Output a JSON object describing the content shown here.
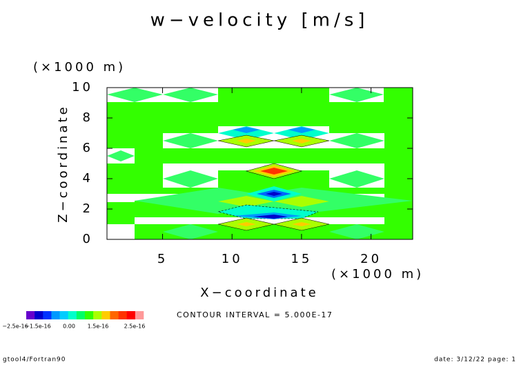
{
  "chart_data": {
    "type": "contour",
    "title": "w−velocity [m/s]",
    "x_label": "X−coordinate",
    "y_label": "Z−coordinate",
    "x_unit": "(×1000 m)",
    "y_unit": "(×1000 m)",
    "xlim": [
      1,
      23
    ],
    "xticks": [
      5,
      10,
      15,
      20
    ],
    "ylim": [
      0,
      10
    ],
    "yticks": [
      0,
      2,
      4,
      6,
      8,
      10
    ],
    "contour_interval_label": "CONTOUR INTERVAL = 5.000E-17",
    "colorbar": {
      "colors": [
        "#6600cc",
        "#0000cc",
        "#0033ff",
        "#0099ff",
        "#00ccff",
        "#00ffcc",
        "#00ff66",
        "#33ff00",
        "#aaff00",
        "#ffcc00",
        "#ff6600",
        "#ff3300",
        "#ff0000",
        "#ff9999"
      ],
      "labels": [
        "−2.5e-16",
        "−1.5e-16",
        "0.00",
        "1.5e-16",
        "2.5e-16"
      ]
    }
  },
  "footer": {
    "left": "gtool4/Fortran90",
    "right": "date: 3/12/22 page: 1"
  }
}
